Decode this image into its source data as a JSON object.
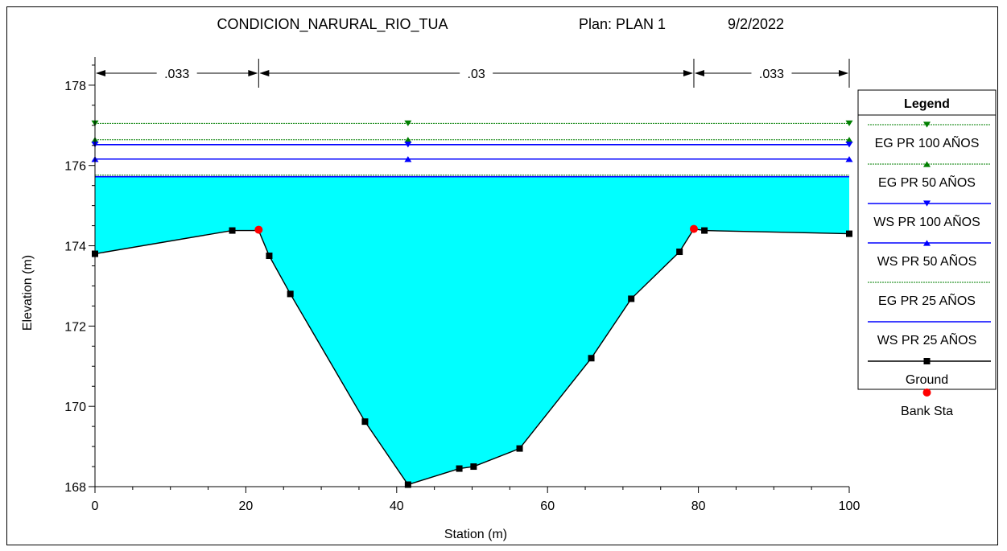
{
  "chart_data": {
    "type": "line",
    "title_parts": [
      "CONDICION_NARURAL_RIO_TUA",
      "Plan: PLAN 1",
      "9/2/2022"
    ],
    "xlabel": "Station (m)",
    "ylabel": "Elevation (m)",
    "xlim": [
      0,
      100
    ],
    "ylim": [
      168,
      179
    ],
    "x_ticks": [
      0,
      20,
      40,
      60,
      80,
      100
    ],
    "y_ticks": [
      168,
      170,
      172,
      174,
      176,
      178
    ],
    "manning": [
      {
        "label": ".033",
        "from": 0,
        "to": 21.7
      },
      {
        "label": ".03",
        "from": 21.7,
        "to": 79.4
      },
      {
        "label": ".033",
        "from": 79.4,
        "to": 100
      }
    ],
    "water_surface_fill": {
      "elevation": 175.72,
      "color": "#00ffff"
    },
    "levels": [
      {
        "name": "EG PR 100 AÑOS",
        "elevation": 177.05,
        "color": "#007f00",
        "marker": "triangle-down",
        "dashed": true
      },
      {
        "name": "EG PR 50 AÑOS",
        "elevation": 176.64,
        "color": "#007f00",
        "marker": "triangle-up",
        "dashed": true
      },
      {
        "name": "WS PR 100 AÑOS",
        "elevation": 176.52,
        "color": "#0000ff",
        "marker": "triangle-down",
        "dashed": false
      },
      {
        "name": "WS PR 50 AÑOS",
        "elevation": 176.16,
        "color": "#0000ff",
        "marker": "triangle-up",
        "dashed": false
      },
      {
        "name": "EG PR 25 AÑOS",
        "elevation": 175.76,
        "color": "#007f00",
        "marker": "none",
        "dashed": true
      },
      {
        "name": "WS PR 25 AÑOS",
        "elevation": 175.72,
        "color": "#0000ff",
        "marker": "none",
        "dashed": false
      }
    ],
    "level_marker_stations": [
      0,
      41.5,
      100
    ],
    "ground": {
      "name": "Ground",
      "color": "#000000",
      "x": [
        0,
        18.2,
        21.7,
        23.1,
        25.9,
        35.8,
        41.5,
        48.3,
        50.2,
        56.3,
        65.8,
        71.1,
        77.5,
        79.4,
        80.8,
        100
      ],
      "y": [
        173.8,
        174.38,
        174.38,
        173.75,
        172.8,
        169.62,
        168.05,
        168.45,
        168.5,
        168.95,
        171.2,
        172.68,
        173.85,
        174.42,
        174.38,
        174.3
      ],
      "marker_skip": [
        2,
        13
      ]
    },
    "bank_stations": {
      "name": "Bank Sta",
      "color": "#ff0000",
      "x": [
        21.7,
        79.4
      ],
      "y": [
        174.4,
        174.42
      ]
    },
    "legend": {
      "title": "Legend",
      "placement": "right",
      "entries": [
        "EG PR 100 AÑOS",
        "EG PR 50 AÑOS",
        "WS PR 100 AÑOS",
        "WS PR 50 AÑOS",
        "EG PR 25 AÑOS",
        "WS PR 25 AÑOS",
        "Ground",
        "Bank Sta"
      ]
    }
  }
}
